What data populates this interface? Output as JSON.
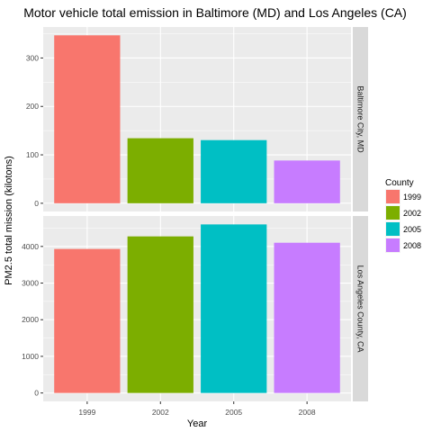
{
  "chart_data": {
    "type": "bar",
    "title": "Motor vehicle total emission in Baltimore (MD) and Los Angeles (CA)",
    "xlabel": "Year",
    "ylabel": "PM2.5 total mission (kilotons)",
    "categories": [
      "1999",
      "2002",
      "2005",
      "2008"
    ],
    "colors": [
      "#F8766D",
      "#7CAE00",
      "#00BFC4",
      "#C77CFF"
    ],
    "grid": true,
    "legend": {
      "title": "County",
      "position": "right",
      "entries": [
        "1999",
        "2002",
        "2005",
        "2008"
      ]
    },
    "panels": [
      {
        "label": "Baltimore City, MD",
        "values": [
          346.8,
          134.3,
          130.4,
          88.3
        ],
        "ylim": [
          -17,
          364
        ],
        "yticks": [
          0,
          100,
          200,
          300
        ],
        "ytick_labels": [
          "0",
          "100",
          "200",
          "300"
        ]
      },
      {
        "label": "Los Angeles County, CA",
        "values": [
          3931,
          4274,
          4601,
          4101
        ],
        "ylim": [
          -230,
          4831
        ],
        "yticks": [
          0,
          1000,
          2000,
          3000,
          4000
        ],
        "ytick_labels": [
          "0",
          "1000",
          "2000",
          "3000",
          "4000"
        ]
      }
    ]
  }
}
